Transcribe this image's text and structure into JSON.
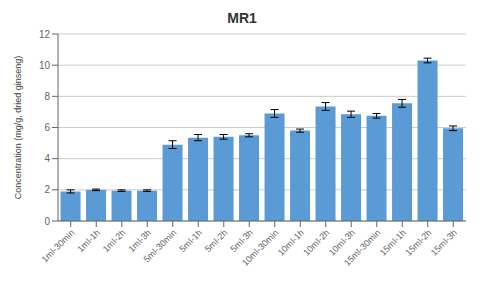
{
  "chart_data": {
    "type": "bar",
    "title": "MR1",
    "ylabel": "Concentration (mg/g, dried ginseng)",
    "categories": [
      "1ml-30min",
      "1ml-1h",
      "1ml-2h",
      "1ml-3h",
      "5ml-30min",
      "5ml-1h",
      "5ml-2h",
      "5ml-3h",
      "10ml-30min",
      "10ml-1h",
      "10ml-2h",
      "10ml-3h",
      "15ml-30min",
      "15ml-1h",
      "15ml-2h",
      "15ml-3h"
    ],
    "values": [
      1.9,
      2.0,
      1.95,
      1.95,
      4.9,
      5.35,
      5.4,
      5.5,
      6.9,
      5.8,
      7.35,
      6.85,
      6.75,
      7.55,
      10.3,
      5.95
    ],
    "errors": [
      0.1,
      0.05,
      0.05,
      0.05,
      0.25,
      0.2,
      0.15,
      0.1,
      0.25,
      0.1,
      0.25,
      0.2,
      0.15,
      0.25,
      0.15,
      0.15
    ],
    "color": "#5b9bd5",
    "ylim": [
      0,
      12
    ],
    "yticks": [
      0,
      2,
      4,
      6,
      8,
      10,
      12
    ],
    "grid": true
  }
}
